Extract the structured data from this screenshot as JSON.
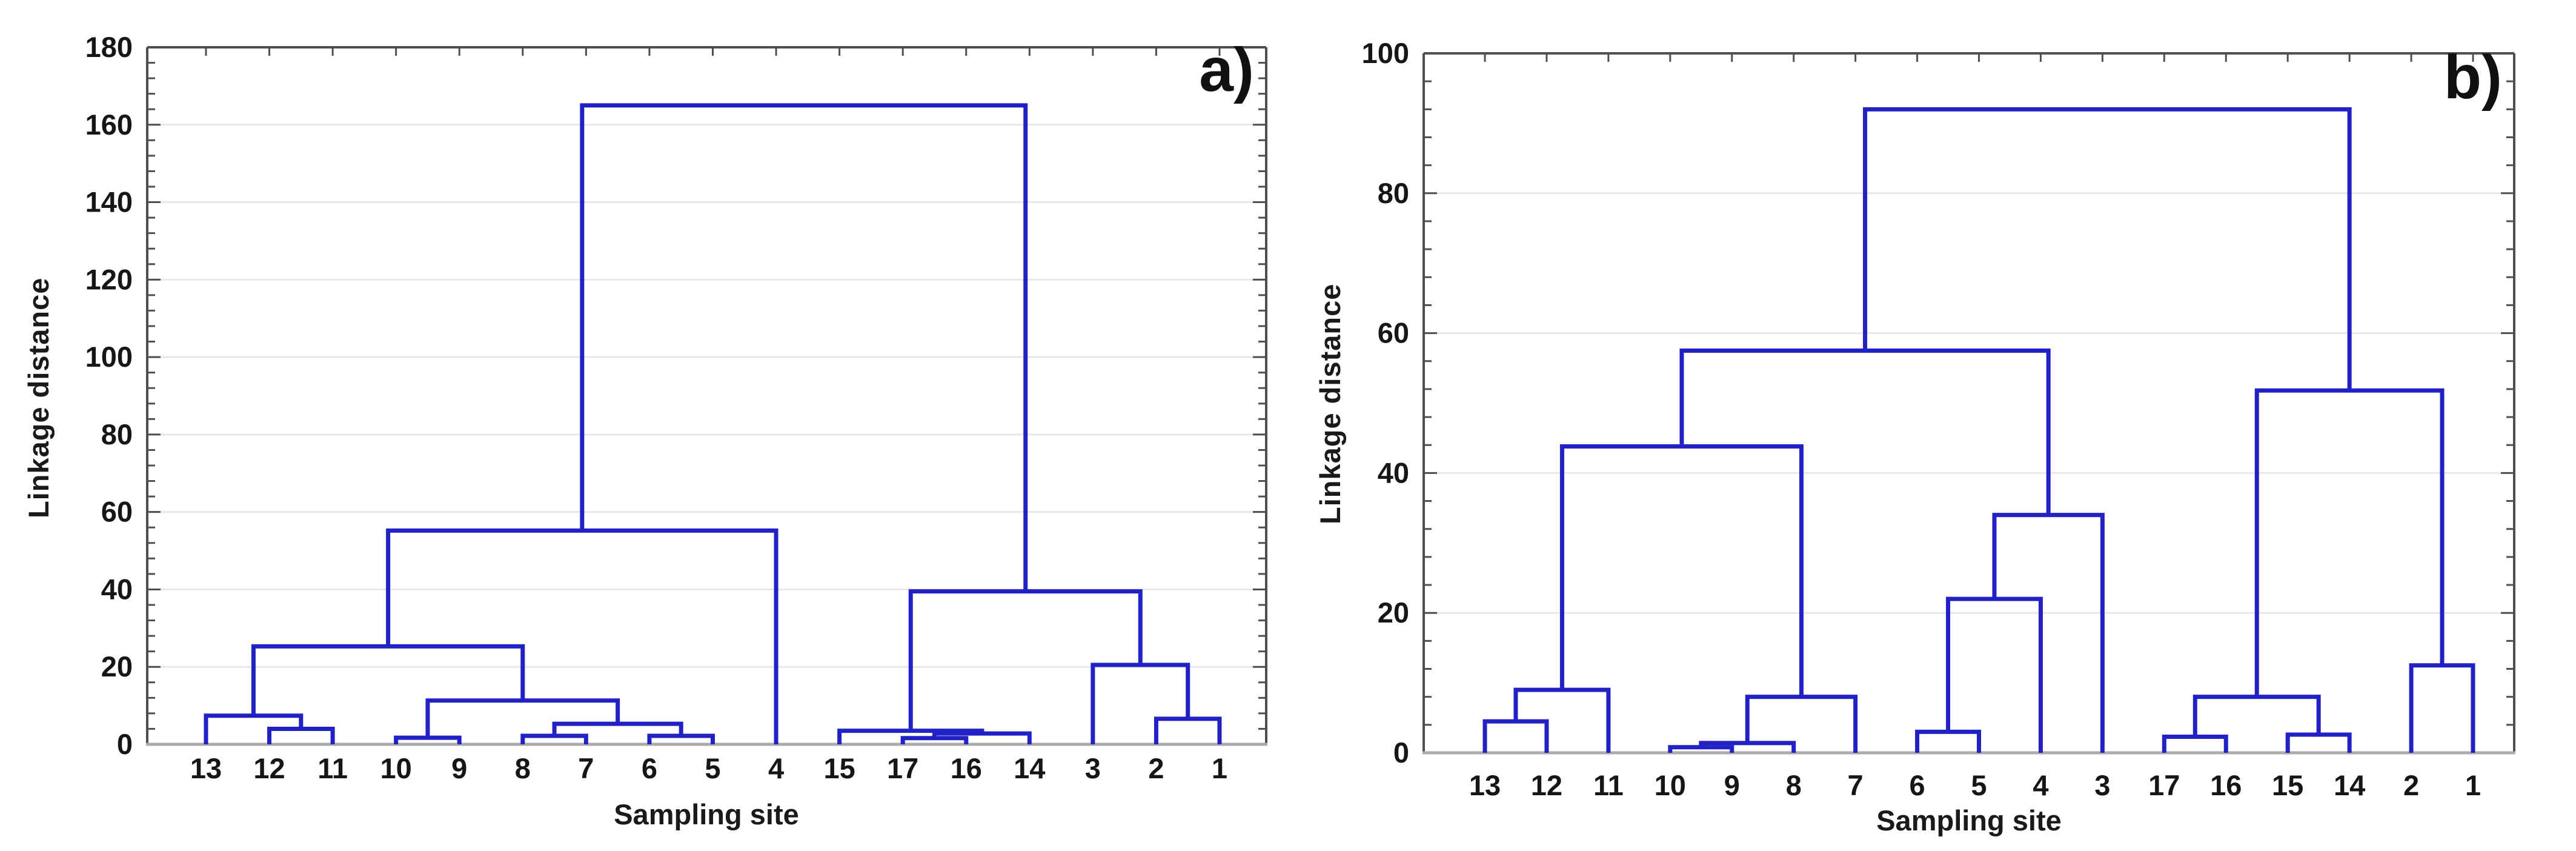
{
  "colors": {
    "link_blue": "#2121c6",
    "gridline": "#e7e7e7",
    "frame": "#4f4f4f",
    "baseline": "#ababab",
    "text": "#161616",
    "background": "#ffffff"
  },
  "chart_data": [
    {
      "type": "dendrogram",
      "panel_label": "a)",
      "xlabel": "Sampling site",
      "ylabel": "Linkage distance",
      "ylim": [
        0,
        180
      ],
      "ytick_step": 20,
      "minor_tick_step": 4,
      "ytick_labels": [
        "0",
        "20",
        "40",
        "60",
        "80",
        "100",
        "120",
        "140",
        "160",
        "180"
      ],
      "grid": "horizontal gridlines at major ticks",
      "legend": "none",
      "leaf_order": [
        "13",
        "12",
        "11",
        "10",
        "9",
        "8",
        "7",
        "6",
        "5",
        "4",
        "15",
        "17",
        "16",
        "14",
        "3",
        "2",
        "1"
      ],
      "merges": [
        {
          "id": "m1",
          "children": [
            "12",
            "11"
          ],
          "height": 4.0
        },
        {
          "id": "m2",
          "children": [
            "13",
            "m1"
          ],
          "height": 7.4
        },
        {
          "id": "m3",
          "children": [
            "10",
            "9"
          ],
          "height": 1.7
        },
        {
          "id": "m4",
          "children": [
            "8",
            "7"
          ],
          "height": 2.2
        },
        {
          "id": "m5",
          "children": [
            "6",
            "5"
          ],
          "height": 2.2
        },
        {
          "id": "m6",
          "children": [
            "m4",
            "m5"
          ],
          "height": 5.3
        },
        {
          "id": "m7",
          "children": [
            "m3",
            "m6"
          ],
          "height": 11.3
        },
        {
          "id": "m8",
          "children": [
            "m2",
            "m7"
          ],
          "height": 25.3
        },
        {
          "id": "m9",
          "children": [
            "m8",
            "4"
          ],
          "height": 55.2
        },
        {
          "id": "m10",
          "children": [
            "17",
            "16"
          ],
          "height": 1.6
        },
        {
          "id": "m11",
          "children": [
            "m10",
            "14"
          ],
          "height": 2.8
        },
        {
          "id": "m12",
          "children": [
            "15",
            "m11"
          ],
          "height": 3.5
        },
        {
          "id": "m13",
          "children": [
            "2",
            "1"
          ],
          "height": 6.6
        },
        {
          "id": "m14",
          "children": [
            "3",
            "m13"
          ],
          "height": 20.5
        },
        {
          "id": "m15",
          "children": [
            "m12",
            "m14"
          ],
          "height": 39.5
        },
        {
          "id": "m16",
          "children": [
            "m9",
            "m15"
          ],
          "height": 165.0
        }
      ]
    },
    {
      "type": "dendrogram",
      "panel_label": "b)",
      "xlabel": "Sampling site",
      "ylabel": "Linkage distance",
      "ylim": [
        0,
        100
      ],
      "ytick_step": 20,
      "minor_tick_step": 4,
      "ytick_labels": [
        "0",
        "20",
        "40",
        "60",
        "80",
        "100"
      ],
      "grid": "horizontal gridlines at major ticks",
      "legend": "none",
      "leaf_order": [
        "13",
        "12",
        "11",
        "10",
        "9",
        "8",
        "7",
        "6",
        "5",
        "4",
        "3",
        "17",
        "16",
        "15",
        "14",
        "2",
        "1"
      ],
      "merges": [
        {
          "id": "n1",
          "children": [
            "13",
            "12"
          ],
          "height": 4.5
        },
        {
          "id": "n2",
          "children": [
            "n1",
            "11"
          ],
          "height": 9.0
        },
        {
          "id": "n3",
          "children": [
            "10",
            "9"
          ],
          "height": 0.8
        },
        {
          "id": "n4",
          "children": [
            "n3",
            "8"
          ],
          "height": 1.4
        },
        {
          "id": "n5",
          "children": [
            "n4",
            "7"
          ],
          "height": 8.0
        },
        {
          "id": "n6",
          "children": [
            "n2",
            "n5"
          ],
          "height": 43.8
        },
        {
          "id": "n7",
          "children": [
            "6",
            "5"
          ],
          "height": 3.0
        },
        {
          "id": "n8",
          "children": [
            "n7",
            "4"
          ],
          "height": 22.0
        },
        {
          "id": "n9",
          "children": [
            "n8",
            "3"
          ],
          "height": 34.0
        },
        {
          "id": "n10",
          "children": [
            "n6",
            "n9"
          ],
          "height": 57.5
        },
        {
          "id": "n11",
          "children": [
            "17",
            "16"
          ],
          "height": 2.3
        },
        {
          "id": "n12",
          "children": [
            "15",
            "14"
          ],
          "height": 2.6
        },
        {
          "id": "n13",
          "children": [
            "n11",
            "n12"
          ],
          "height": 8.0
        },
        {
          "id": "n14",
          "children": [
            "2",
            "1"
          ],
          "height": 12.5
        },
        {
          "id": "n15",
          "children": [
            "n13",
            "n14"
          ],
          "height": 51.8
        },
        {
          "id": "n16",
          "children": [
            "n10",
            "n15"
          ],
          "height": 92.0
        }
      ]
    }
  ]
}
